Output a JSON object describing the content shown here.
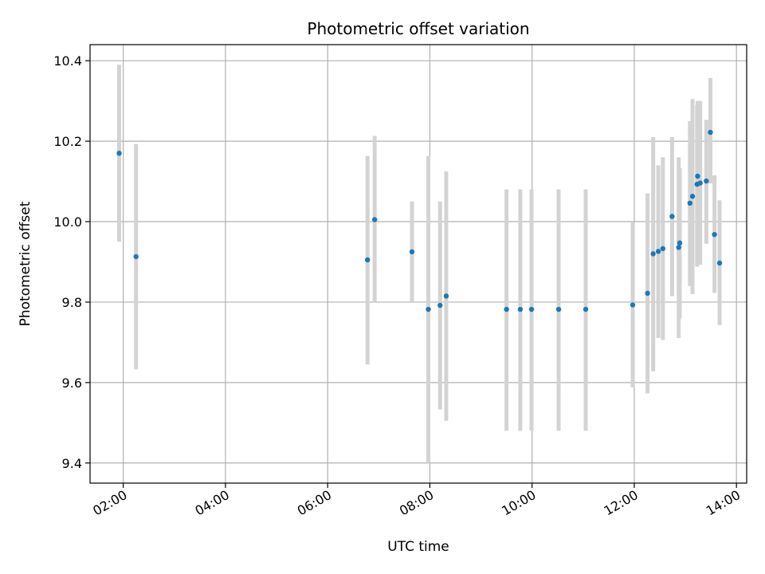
{
  "chart_data": {
    "type": "scatter",
    "title": "Photometric offset variation",
    "xlabel": "UTC time",
    "ylabel": "Photometric offset",
    "x_unit": "hours UTC",
    "xlim": [
      1.35,
      14.2
    ],
    "ylim": [
      9.35,
      10.44
    ],
    "x_ticks": [
      {
        "value": 2,
        "label": "02:00"
      },
      {
        "value": 4,
        "label": "04:00"
      },
      {
        "value": 6,
        "label": "06:00"
      },
      {
        "value": 8,
        "label": "08:00"
      },
      {
        "value": 10,
        "label": "10:00"
      },
      {
        "value": 12,
        "label": "12:00"
      },
      {
        "value": 14,
        "label": "14:00"
      }
    ],
    "y_ticks": [
      {
        "value": 9.4,
        "label": "9.4"
      },
      {
        "value": 9.6,
        "label": "9.6"
      },
      {
        "value": 9.8,
        "label": "9.8"
      },
      {
        "value": 10.0,
        "label": "10.0"
      },
      {
        "value": 10.2,
        "label": "10.2"
      },
      {
        "value": 10.4,
        "label": "10.4"
      }
    ],
    "grid": true,
    "marker_color": "#1f77b4",
    "errorbar_color": "#d3d3d3",
    "points": [
      {
        "x": 1.92,
        "y": 10.17,
        "lo": 9.95,
        "hi": 10.39
      },
      {
        "x": 2.25,
        "y": 9.913,
        "lo": 9.633,
        "hi": 10.193
      },
      {
        "x": 6.78,
        "y": 9.905,
        "lo": 9.645,
        "hi": 10.163
      },
      {
        "x": 6.92,
        "y": 10.005,
        "lo": 9.8,
        "hi": 10.213
      },
      {
        "x": 7.65,
        "y": 9.925,
        "lo": 9.8,
        "hi": 10.05
      },
      {
        "x": 7.97,
        "y": 9.782,
        "lo": 9.4,
        "hi": 10.163
      },
      {
        "x": 8.2,
        "y": 9.792,
        "lo": 9.533,
        "hi": 10.05
      },
      {
        "x": 8.32,
        "y": 9.815,
        "lo": 9.505,
        "hi": 10.125
      },
      {
        "x": 9.5,
        "y": 9.782,
        "lo": 9.48,
        "hi": 10.08
      },
      {
        "x": 9.77,
        "y": 9.782,
        "lo": 9.48,
        "hi": 10.08
      },
      {
        "x": 9.99,
        "y": 9.782,
        "lo": 9.48,
        "hi": 10.08
      },
      {
        "x": 10.52,
        "y": 9.782,
        "lo": 9.48,
        "hi": 10.08
      },
      {
        "x": 11.05,
        "y": 9.782,
        "lo": 9.48,
        "hi": 10.08
      },
      {
        "x": 11.97,
        "y": 9.793,
        "lo": 9.588,
        "hi": 9.998
      },
      {
        "x": 12.26,
        "y": 9.822,
        "lo": 9.573,
        "hi": 10.07
      },
      {
        "x": 12.37,
        "y": 9.92,
        "lo": 9.628,
        "hi": 10.21
      },
      {
        "x": 12.47,
        "y": 9.926,
        "lo": 9.711,
        "hi": 10.14
      },
      {
        "x": 12.56,
        "y": 9.933,
        "lo": 9.706,
        "hi": 10.16
      },
      {
        "x": 12.74,
        "y": 10.013,
        "lo": 9.815,
        "hi": 10.21
      },
      {
        "x": 12.87,
        "y": 9.936,
        "lo": 9.711,
        "hi": 10.16
      },
      {
        "x": 12.89,
        "y": 9.947,
        "lo": 9.76,
        "hi": 10.133
      },
      {
        "x": 13.09,
        "y": 10.046,
        "lo": 9.84,
        "hi": 10.25
      },
      {
        "x": 13.14,
        "y": 10.063,
        "lo": 9.82,
        "hi": 10.305
      },
      {
        "x": 13.23,
        "y": 10.093,
        "lo": 9.888,
        "hi": 10.29
      },
      {
        "x": 13.24,
        "y": 10.113,
        "lo": 9.924,
        "hi": 10.3
      },
      {
        "x": 13.29,
        "y": 10.096,
        "lo": 9.893,
        "hi": 10.3
      },
      {
        "x": 13.41,
        "y": 10.101,
        "lo": 9.945,
        "hi": 10.253
      },
      {
        "x": 13.49,
        "y": 10.222,
        "lo": 10.095,
        "hi": 10.357
      },
      {
        "x": 13.57,
        "y": 9.968,
        "lo": 9.823,
        "hi": 10.115
      },
      {
        "x": 13.67,
        "y": 9.897,
        "lo": 9.743,
        "hi": 10.053
      }
    ]
  }
}
